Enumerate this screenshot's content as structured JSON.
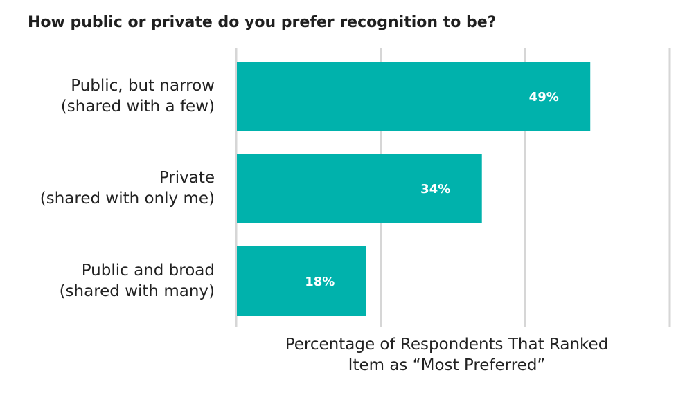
{
  "chart_data": {
    "type": "bar",
    "orientation": "horizontal",
    "title": "How public or private do you prefer recognition to be?",
    "xlabel": [
      "Percentage of Respondents That Ranked",
      "Item as “Most Preferred”"
    ],
    "ylabel": "",
    "categories": [
      [
        "Public, but narrow",
        "(shared with a few)"
      ],
      [
        "Private",
        "(shared with only me)"
      ],
      [
        "Public and broad",
        "(shared with many)"
      ]
    ],
    "values": [
      49,
      34,
      18
    ],
    "data_labels": [
      "49%",
      "34%",
      "18%"
    ],
    "xlim": [
      0,
      60
    ],
    "gridlines": [
      0,
      20,
      40,
      60
    ],
    "grid": true,
    "legend": "none",
    "bar_color": "#00b2ac",
    "label_color": "#ffffff",
    "grid_color": "#d6d6d6",
    "text_color": "#222222"
  }
}
